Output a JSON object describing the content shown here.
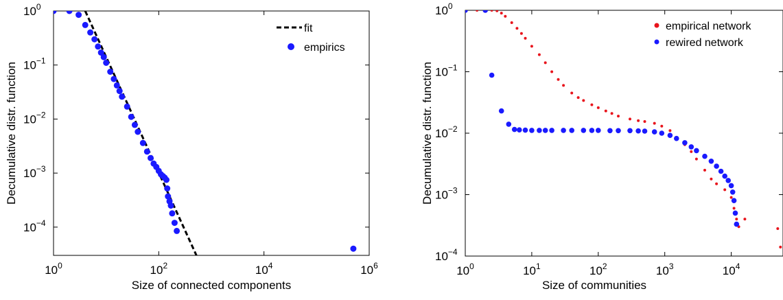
{
  "chart_data": [
    {
      "type": "scatter",
      "xscale": "log",
      "yscale": "log",
      "xlim": [
        1,
        1000000
      ],
      "ylim": [
        3e-05,
        1
      ],
      "xlabel": "Size of connected components",
      "ylabel": "Decumulative distr. function",
      "xticks": [
        {
          "value": 1,
          "base": "10",
          "exp": "0"
        },
        {
          "value": 100,
          "base": "10",
          "exp": "2"
        },
        {
          "value": 10000,
          "base": "10",
          "exp": "4"
        },
        {
          "value": 1000000,
          "base": "10",
          "exp": "6"
        }
      ],
      "yticks": [
        {
          "value": 0.0001,
          "base": "10",
          "exp": "−4"
        },
        {
          "value": 0.001,
          "base": "10",
          "exp": "−3"
        },
        {
          "value": 0.01,
          "base": "10",
          "exp": "−2"
        },
        {
          "value": 0.1,
          "base": "10",
          "exp": "−1"
        },
        {
          "value": 1,
          "base": "10",
          "exp": "0"
        }
      ],
      "legend_position": "top-right",
      "series": [
        {
          "name": "fit",
          "style": "dashed-line",
          "color": "#000000",
          "x": [
            4,
            520
          ],
          "y": [
            1.0,
            3e-05
          ]
        },
        {
          "name": "empirics",
          "style": "markers",
          "color": "#1a1aff",
          "x": [
            1,
            2,
            3,
            4,
            5,
            6,
            7,
            8,
            9,
            10,
            12,
            14,
            16,
            18,
            20,
            25,
            30,
            35,
            40,
            50,
            60,
            70,
            80,
            90,
            100,
            110,
            120,
            130,
            140,
            145,
            150,
            160,
            170,
            180,
            200,
            220,
            500000
          ],
          "y": [
            1.0,
            1.0,
            0.85,
            0.55,
            0.4,
            0.3,
            0.22,
            0.17,
            0.14,
            0.11,
            0.075,
            0.055,
            0.042,
            0.033,
            0.026,
            0.017,
            0.011,
            0.0078,
            0.0058,
            0.0036,
            0.0025,
            0.0019,
            0.0015,
            0.0013,
            0.0011,
            0.00095,
            0.00088,
            0.00082,
            0.00075,
            0.00052,
            0.00037,
            0.0003,
            0.00025,
            0.00018,
            0.00012,
            8.5e-05,
            4e-05
          ]
        }
      ]
    },
    {
      "type": "scatter",
      "xscale": "log",
      "yscale": "log",
      "xlim": [
        1,
        60000
      ],
      "ylim": [
        0.0001,
        1
      ],
      "xlabel": "Size of communities",
      "ylabel": "Decumulative distr. function",
      "xticks": [
        {
          "value": 1,
          "base": "10",
          "exp": "0"
        },
        {
          "value": 10,
          "base": "10",
          "exp": "1"
        },
        {
          "value": 100,
          "base": "10",
          "exp": "2"
        },
        {
          "value": 1000,
          "base": "10",
          "exp": "3"
        },
        {
          "value": 10000,
          "base": "10",
          "exp": "4"
        }
      ],
      "yticks": [
        {
          "value": 0.0001,
          "base": "10",
          "exp": "−4"
        },
        {
          "value": 0.001,
          "base": "10",
          "exp": "−3"
        },
        {
          "value": 0.01,
          "base": "10",
          "exp": "−2"
        },
        {
          "value": 0.1,
          "base": "10",
          "exp": "−1"
        },
        {
          "value": 1,
          "base": "10",
          "exp": "0"
        }
      ],
      "legend_position": "top-right",
      "series": [
        {
          "name": "empirical network",
          "style": "dots",
          "color": "#e8141c",
          "x": [
            1,
            1.5,
            2,
            2.5,
            3,
            3.5,
            4,
            5,
            6,
            7,
            8,
            10,
            13,
            16,
            20,
            25,
            30,
            40,
            50,
            60,
            80,
            100,
            130,
            160,
            200,
            300,
            400,
            500,
            700,
            900,
            1200,
            1500,
            2000,
            2500,
            3000,
            4000,
            5000,
            6000,
            8000,
            10000,
            11000,
            12000,
            13000,
            16000,
            50000,
            55000
          ],
          "y": [
            1.0,
            1.0,
            1.0,
            1.0,
            0.98,
            0.9,
            0.8,
            0.63,
            0.51,
            0.42,
            0.35,
            0.26,
            0.19,
            0.14,
            0.1,
            0.075,
            0.06,
            0.045,
            0.038,
            0.034,
            0.029,
            0.026,
            0.023,
            0.021,
            0.019,
            0.017,
            0.016,
            0.0155,
            0.0145,
            0.013,
            0.011,
            0.0085,
            0.0065,
            0.005,
            0.0038,
            0.0025,
            0.0018,
            0.0015,
            0.0012,
            0.0009,
            0.0006,
            0.0004,
            0.0003,
            0.0004,
            0.00028,
            0.00014
          ]
        },
        {
          "name": "rewired network",
          "style": "markers",
          "color": "#1a1aff",
          "x": [
            1,
            2,
            2.5,
            3.5,
            4.5,
            5.5,
            6.5,
            8,
            10,
            13,
            16,
            20,
            30,
            40,
            60,
            80,
            100,
            150,
            200,
            300,
            400,
            500,
            700,
            900,
            1200,
            1500,
            2000,
            2500,
            3000,
            4000,
            5000,
            6000,
            7000,
            8000,
            9000,
            10000,
            10500,
            11000,
            11500,
            12000
          ],
          "y": [
            1.0,
            1.0,
            0.088,
            0.023,
            0.014,
            0.0115,
            0.0113,
            0.0112,
            0.0111,
            0.0111,
            0.0111,
            0.0111,
            0.0111,
            0.0111,
            0.0111,
            0.0111,
            0.0111,
            0.011,
            0.011,
            0.011,
            0.0109,
            0.0108,
            0.0105,
            0.01,
            0.0092,
            0.0082,
            0.007,
            0.006,
            0.0052,
            0.0042,
            0.0035,
            0.0029,
            0.0024,
            0.002,
            0.0017,
            0.0014,
            0.0011,
            0.0008,
            0.0005,
            0.00033
          ]
        }
      ]
    }
  ]
}
